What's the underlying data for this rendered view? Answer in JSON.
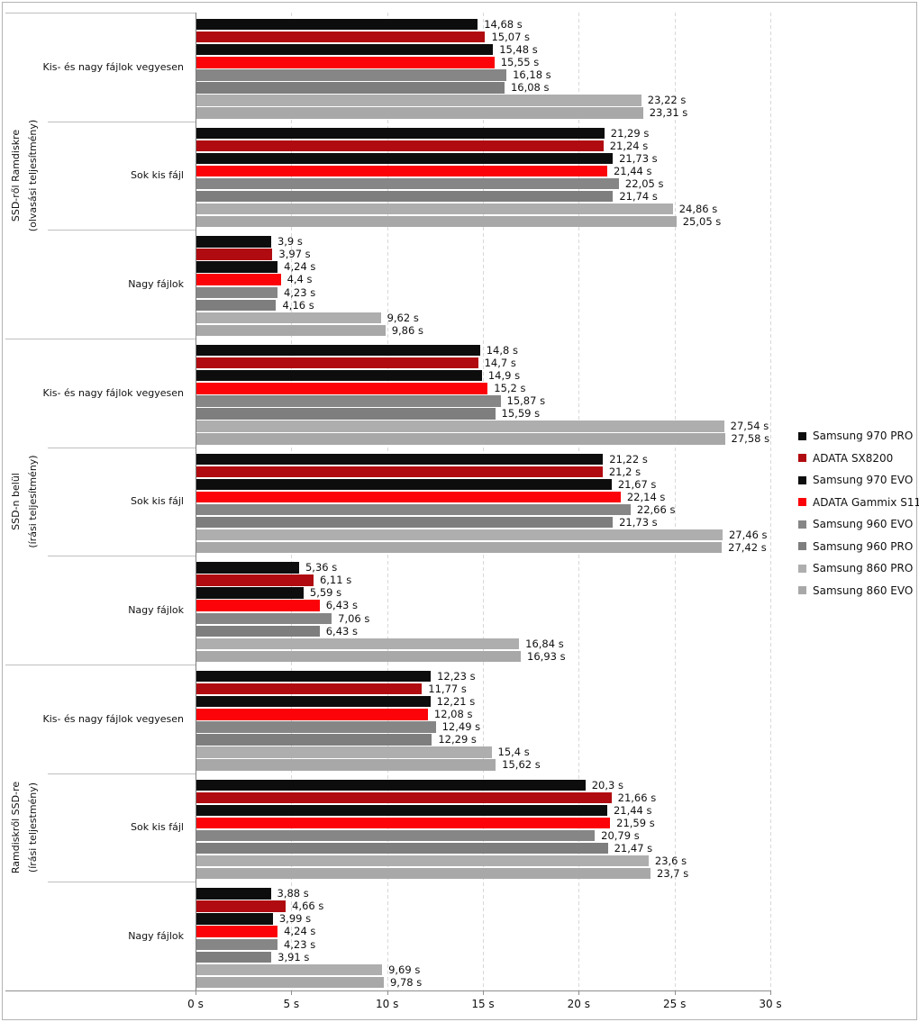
{
  "chart_data": {
    "type": "bar",
    "orientation": "horizontal",
    "unit": "s",
    "decimal_separator": ",",
    "xlim": [
      0,
      30
    ],
    "x_ticks": [
      "0 s",
      "5 s",
      "10 s",
      "15 s",
      "20 s",
      "25 s",
      "30 s"
    ],
    "grid": "vertical-dashed",
    "legend_position": "right",
    "series": [
      {
        "name": "Samsung 970 PRO",
        "color": "#0d0d0d"
      },
      {
        "name": "ADATA SX8200",
        "color": "#b00b10"
      },
      {
        "name": "Samsung 970 EVO",
        "color": "#0d0d0d"
      },
      {
        "name": "ADATA Gammix S11",
        "color": "#fb0308"
      },
      {
        "name": "Samsung 960 EVO",
        "color": "#868686"
      },
      {
        "name": "Samsung 960 PRO",
        "color": "#7e7e7e"
      },
      {
        "name": "Samsung 860 PRO",
        "color": "#aeaeae"
      },
      {
        "name": "Samsung 860 EVO",
        "color": "#a8a8a8"
      }
    ],
    "groups": [
      {
        "label_lines": [
          "SSD-ről Ramdiskre",
          "(olvasási teljesítmény)"
        ],
        "subgroups": [
          {
            "label": "Kis- és nagy fájlok vegyesen",
            "values": [
              14.68,
              15.07,
              15.48,
              15.55,
              16.18,
              16.08,
              23.22,
              23.31
            ]
          },
          {
            "label": "Sok kis fájl",
            "values": [
              21.29,
              21.24,
              21.73,
              21.44,
              22.05,
              21.74,
              24.86,
              25.05
            ]
          },
          {
            "label": "Nagy fájlok",
            "values": [
              3.9,
              3.97,
              4.24,
              4.4,
              4.23,
              4.16,
              9.62,
              9.86
            ]
          }
        ]
      },
      {
        "label_lines": [
          "SSD-n belül",
          "(írási teljesítmény)"
        ],
        "subgroups": [
          {
            "label": "Kis- és nagy fájlok vegyesen",
            "values": [
              14.8,
              14.7,
              14.9,
              15.2,
              15.87,
              15.59,
              27.54,
              27.58
            ]
          },
          {
            "label": "Sok kis fájl",
            "values": [
              21.22,
              21.2,
              21.67,
              22.14,
              22.66,
              21.73,
              27.46,
              27.42
            ]
          },
          {
            "label": "Nagy fájlok",
            "values": [
              5.36,
              6.11,
              5.59,
              6.43,
              7.06,
              6.43,
              16.84,
              16.93
            ]
          }
        ]
      },
      {
        "label_lines": [
          "Ramdiskről SSD-re",
          "(írási teljestmény)"
        ],
        "subgroups": [
          {
            "label": "Kis- és nagy fájlok vegyesen",
            "values": [
              12.23,
              11.77,
              12.21,
              12.08,
              12.49,
              12.29,
              15.4,
              15.62
            ]
          },
          {
            "label": "Sok kis fájl",
            "values": [
              20.3,
              21.66,
              21.44,
              21.59,
              20.79,
              21.47,
              23.6,
              23.7
            ]
          },
          {
            "label": "Nagy fájlok",
            "values": [
              3.88,
              4.66,
              3.99,
              4.24,
              4.23,
              3.91,
              9.69,
              9.78
            ]
          }
        ]
      }
    ]
  }
}
